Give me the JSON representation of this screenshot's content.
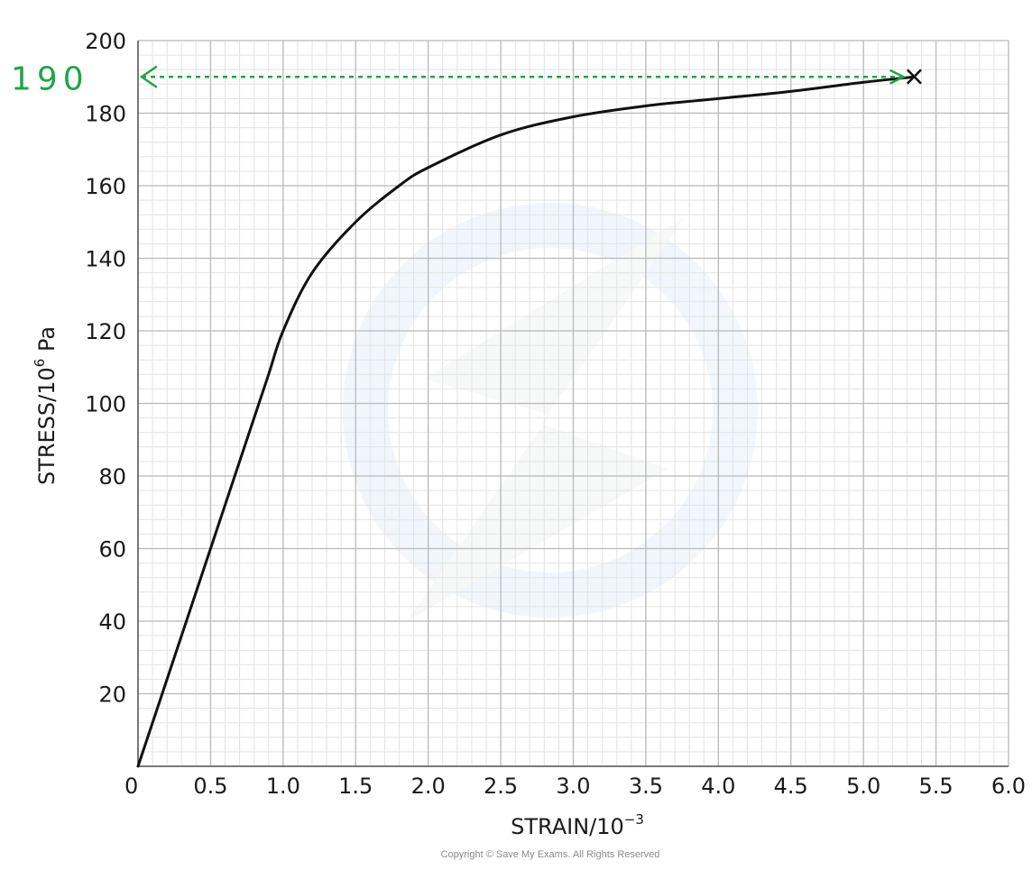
{
  "chart_data": {
    "type": "line",
    "xlabel": "STRAIN/10",
    "xlabel_exp": "−3",
    "ylabel": "STRESS/10",
    "ylabel_exp": "6",
    "ylabel_unit": " Pa",
    "xlim": [
      0,
      6.0
    ],
    "ylim": [
      0,
      200
    ],
    "grid": true,
    "x_ticks": [
      "0.5",
      "1.0",
      "1.5",
      "2.0",
      "2.5",
      "3.0",
      "3.5",
      "4.0",
      "4.5",
      "5.0",
      "5.5",
      "6.0"
    ],
    "y_ticks": [
      "20",
      "40",
      "60",
      "80",
      "100",
      "120",
      "140",
      "160",
      "180",
      "200"
    ],
    "origin_label": "0",
    "series": [
      {
        "color": "#111111",
        "x": [
          0,
          0.25,
          0.5,
          0.75,
          0.9,
          1.0,
          1.2,
          1.5,
          1.8,
          2.0,
          2.5,
          3.0,
          3.5,
          4.0,
          4.5,
          5.0,
          5.35
        ],
        "y": [
          0,
          30,
          60,
          90,
          108,
          120,
          136,
          150,
          160,
          165,
          174,
          179,
          182,
          184,
          186,
          188.5,
          190
        ]
      }
    ],
    "end_marker": {
      "x": 5.35,
      "y": 190,
      "symbol": "×"
    },
    "annotation": {
      "text": "190",
      "x": 5.35,
      "y": 190,
      "color": "#22a447"
    }
  },
  "footer": {
    "copyright": "Copyright © Save My Exams. All Rights Reserved"
  }
}
